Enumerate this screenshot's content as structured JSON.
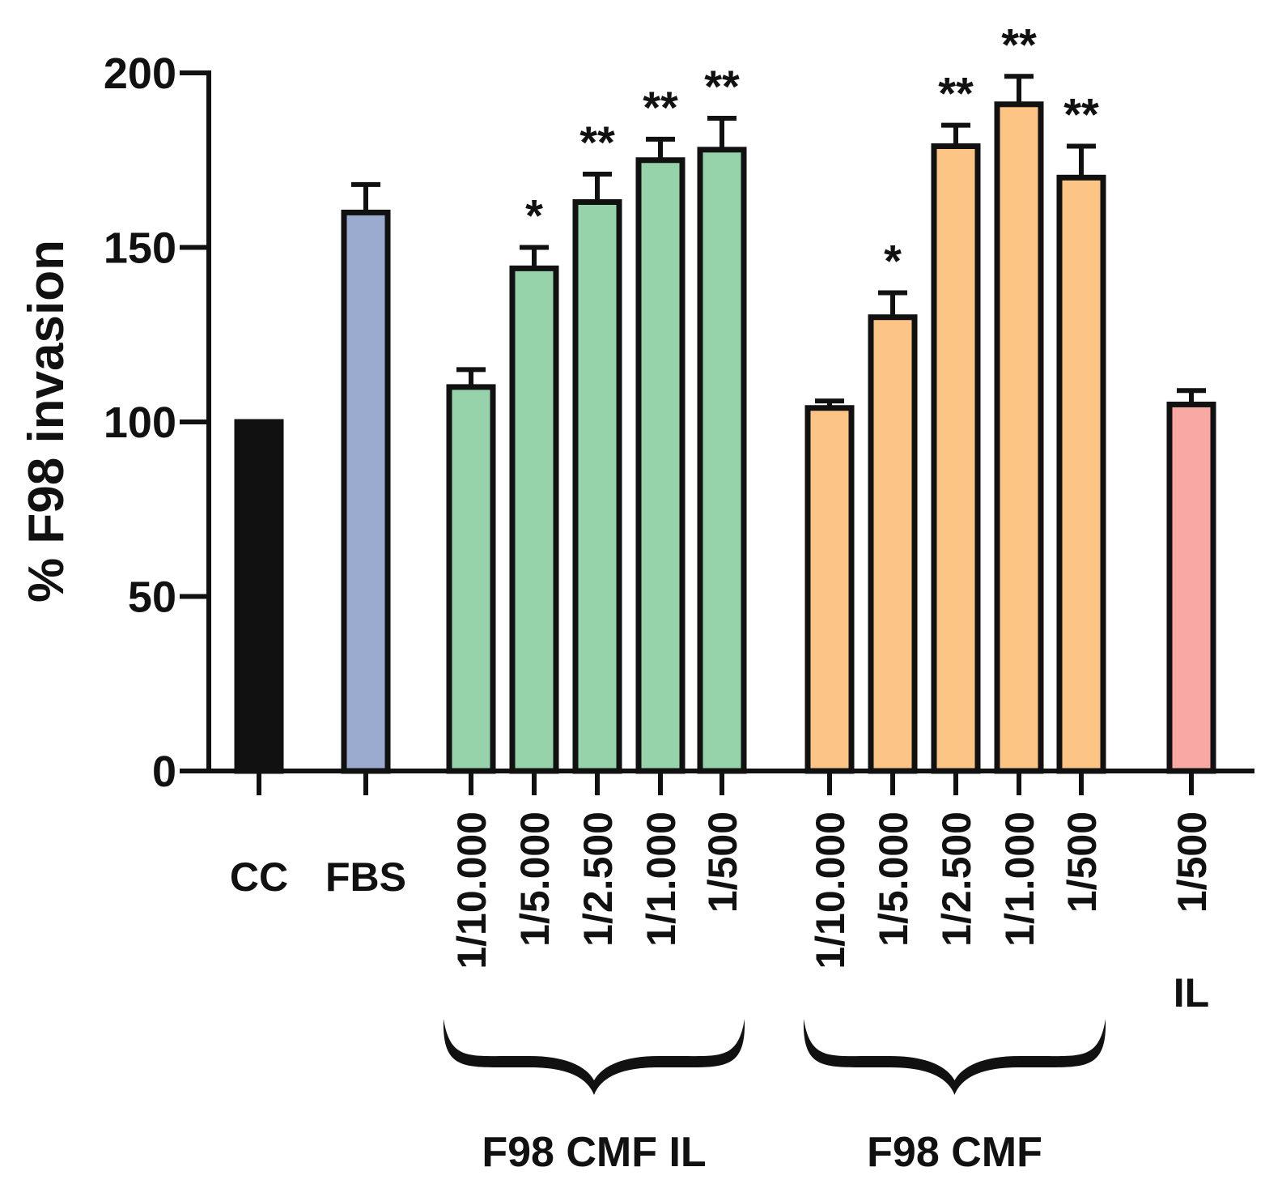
{
  "chart_data": {
    "type": "bar",
    "title": "",
    "xlabel": "",
    "ylabel": "% F98 invasion",
    "ylim": [
      0,
      200
    ],
    "yticks": [
      0,
      50,
      100,
      150,
      200
    ],
    "grid": false,
    "bars": [
      {
        "label": "CC",
        "value": 100,
        "error": 0,
        "sig": "",
        "color": "#111111"
      },
      {
        "label": "FBS",
        "value": 160,
        "error": 8,
        "sig": "",
        "color": "#9aabcf"
      },
      {
        "label": "1/10.000",
        "value": 110,
        "error": 5,
        "sig": "",
        "color": "#96d3aa"
      },
      {
        "label": "1/5.000",
        "value": 144,
        "error": 6,
        "sig": "*",
        "color": "#96d3aa"
      },
      {
        "label": "1/2.500",
        "value": 163,
        "error": 8,
        "sig": "**",
        "color": "#96d3aa"
      },
      {
        "label": "1/1.000",
        "value": 175,
        "error": 6,
        "sig": "**",
        "color": "#96d3aa"
      },
      {
        "label": "1/500",
        "value": 178,
        "error": 9,
        "sig": "**",
        "color": "#96d3aa"
      },
      {
        "label": "1/10.000",
        "value": 104,
        "error": 2,
        "sig": "",
        "color": "#fcc586"
      },
      {
        "label": "1/5.000",
        "value": 130,
        "error": 7,
        "sig": "*",
        "color": "#fcc586"
      },
      {
        "label": "1/2.500",
        "value": 179,
        "error": 6,
        "sig": "**",
        "color": "#fcc586"
      },
      {
        "label": "1/1.000",
        "value": 191,
        "error": 8,
        "sig": "**",
        "color": "#fcc586"
      },
      {
        "label": "1/500",
        "value": 170,
        "error": 9,
        "sig": "**",
        "color": "#fcc586"
      },
      {
        "label": "1/500",
        "value": 105,
        "error": 4,
        "sig": "",
        "color": "#f9a9a4"
      }
    ],
    "groups": [
      {
        "label": "F98 CMF IL",
        "members": [
          2,
          3,
          4,
          5,
          6
        ]
      },
      {
        "label": "F98 CMF",
        "members": [
          7,
          8,
          9,
          10,
          11
        ]
      }
    ],
    "extra_labels": [
      {
        "label": "IL",
        "bar": 12
      }
    ]
  }
}
